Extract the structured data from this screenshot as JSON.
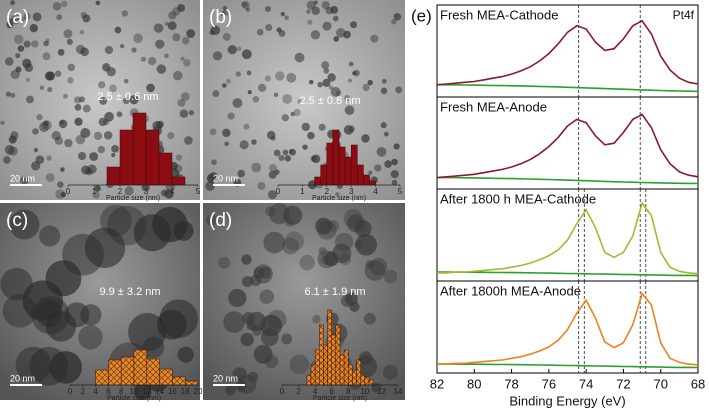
{
  "chart_data": [
    {
      "type": "histogram",
      "panel_label": "(a)",
      "scale_bar": "20 nm",
      "annotation": "2.5 ± 0.6 nm",
      "xlabel": "Particle size (nm)",
      "bins": [
        1.5,
        2,
        2.5,
        3,
        3.5,
        4,
        4.5
      ],
      "values": [
        18,
        55,
        72,
        55,
        32,
        8
      ],
      "color": "#8b0d12",
      "hatch": false,
      "xlim": [
        0,
        5
      ],
      "xticks": [
        0,
        1,
        2,
        3,
        4,
        5
      ]
    },
    {
      "type": "histogram",
      "panel_label": "(b)",
      "scale_bar": "20 nm",
      "annotation": "2.5 ± 0.6 nm",
      "xlabel": "Particle size (nm)",
      "bins": [
        1.5,
        1.75,
        2,
        2.25,
        2.5,
        2.75,
        3,
        3.25,
        3.5,
        3.75,
        4
      ],
      "values": [
        8,
        20,
        42,
        55,
        38,
        28,
        40,
        20,
        10,
        4
      ],
      "color": "#8b0d12",
      "hatch": false,
      "xlim": [
        0,
        5
      ],
      "xticks": [
        0,
        1,
        2,
        3,
        4,
        5
      ]
    },
    {
      "type": "histogram",
      "panel_label": "(c)",
      "scale_bar": "20 nm",
      "annotation": "9.9 ± 3.2 nm",
      "xlabel": "Particle size (nm)",
      "bins": [
        4,
        6,
        8,
        10,
        12,
        14,
        16,
        18,
        20
      ],
      "values": [
        15,
        25,
        28,
        35,
        26,
        16,
        8,
        4
      ],
      "color": "#e8892a",
      "hatch": true,
      "xlim": [
        0,
        20
      ],
      "xticks": [
        0,
        2,
        4,
        6,
        8,
        10,
        12,
        14,
        16,
        18,
        20
      ]
    },
    {
      "type": "histogram",
      "panel_label": "(d)",
      "scale_bar": "20 nm",
      "annotation": "6.1 ± 1.9 nm",
      "xlabel": "Particle size (nm)",
      "bins": [
        3,
        3.5,
        4,
        4.5,
        5,
        5.5,
        6,
        6.5,
        7,
        7.5,
        8,
        8.5,
        9,
        9.5,
        10,
        10.5,
        11
      ],
      "values": [
        10,
        20,
        35,
        60,
        40,
        75,
        50,
        60,
        30,
        35,
        20,
        15,
        25,
        10,
        8,
        5
      ],
      "color": "#e8892a",
      "hatch": true,
      "xlim": [
        0,
        14
      ],
      "xticks": [
        0,
        2,
        4,
        6,
        8,
        10,
        12,
        14
      ]
    },
    {
      "type": "line",
      "panel_label": "(e)",
      "note": "Pt4f",
      "title": "Fresh MEA-Cathode",
      "xlim": [
        82,
        68
      ],
      "vlines": [
        74.4,
        71.1
      ],
      "x": [
        82,
        81.5,
        81,
        80.5,
        80,
        79.5,
        79,
        78.5,
        78,
        77.5,
        77,
        76.5,
        76,
        75.5,
        75,
        74.5,
        74,
        73.5,
        73,
        72.5,
        72,
        71.5,
        71,
        70.5,
        70,
        69.5,
        69,
        68.5,
        68
      ],
      "series": [
        {
          "color": "#8b1a2a",
          "values": [
            10,
            11,
            12,
            13,
            14,
            16,
            18,
            20,
            23,
            27,
            32,
            39,
            48,
            60,
            74,
            82,
            78,
            62,
            52,
            54,
            66,
            82,
            88,
            72,
            45,
            28,
            18,
            13,
            11
          ]
        },
        {
          "color": "#2ca02c",
          "values": [
            10,
            10,
            10,
            9.8,
            9.6,
            9.4,
            9.2,
            9,
            8.8,
            8.6,
            8.3,
            8,
            7.7,
            7.4,
            7,
            6.6,
            6.2,
            5.8,
            5.4,
            5,
            4.6,
            4.2,
            3.8,
            3.4,
            3,
            2.7,
            2.4,
            2.2,
            2
          ]
        }
      ]
    },
    {
      "type": "line",
      "title": "Fresh MEA-Anode",
      "xlim": [
        82,
        68
      ],
      "vlines": [
        74.4,
        71.1
      ],
      "x": [
        82,
        81.5,
        81,
        80.5,
        80,
        79.5,
        79,
        78.5,
        78,
        77.5,
        77,
        76.5,
        76,
        75.5,
        75,
        74.5,
        74,
        73.5,
        73,
        72.5,
        72,
        71.5,
        71,
        70.5,
        70,
        69.5,
        69,
        68.5,
        68
      ],
      "series": [
        {
          "color": "#8b1a2a",
          "values": [
            9,
            10,
            11,
            12,
            13,
            15,
            17,
            19,
            22,
            26,
            31,
            38,
            47,
            58,
            72,
            80,
            76,
            60,
            49,
            51,
            64,
            80,
            86,
            70,
            43,
            26,
            16,
            12,
            10
          ]
        },
        {
          "color": "#2ca02c",
          "values": [
            9,
            9,
            9,
            8.8,
            8.6,
            8.4,
            8.2,
            8,
            7.8,
            7.6,
            7.3,
            7,
            6.7,
            6.4,
            6,
            5.6,
            5.2,
            4.8,
            4.4,
            4,
            3.7,
            3.4,
            3.1,
            2.8,
            2.5,
            2.3,
            2.1,
            2,
            2
          ]
        }
      ]
    },
    {
      "type": "line",
      "title": "After 1800 h MEA-Cathode",
      "xlim": [
        82,
        68
      ],
      "vlines": [
        74.4,
        74.1,
        71.1,
        70.8
      ],
      "x": [
        82,
        81.5,
        81,
        80.5,
        80,
        79.5,
        79,
        78.5,
        78,
        77.5,
        77,
        76.5,
        76,
        75.5,
        75,
        74.5,
        74,
        73.5,
        73,
        72.5,
        72,
        71.5,
        71,
        70.5,
        70,
        69.5,
        69,
        68.5,
        68
      ],
      "series": [
        {
          "color": "#a8b832",
          "values": [
            5,
            5,
            6,
            6,
            7,
            8,
            9,
            10,
            12,
            14,
            17,
            21,
            26,
            33,
            45,
            65,
            82,
            60,
            30,
            24,
            30,
            50,
            90,
            75,
            30,
            12,
            7,
            5,
            4
          ]
        },
        {
          "color": "#2ca02c",
          "values": [
            6,
            6,
            6,
            5.9,
            5.8,
            5.7,
            5.6,
            5.5,
            5.4,
            5.3,
            5.1,
            4.9,
            4.7,
            4.5,
            4.3,
            4.1,
            3.9,
            3.7,
            3.5,
            3.3,
            3.1,
            2.9,
            2.7,
            2.5,
            2.3,
            2.1,
            2,
            1.9,
            1.8
          ]
        }
      ]
    },
    {
      "type": "line",
      "title": "After 1800h MEA-Anode",
      "xlim": [
        82,
        68
      ],
      "vlines": [
        74.4,
        74.1,
        71.1,
        70.8
      ],
      "x": [
        82,
        81.5,
        81,
        80.5,
        80,
        79.5,
        79,
        78.5,
        78,
        77.5,
        77,
        76.5,
        76,
        75.5,
        75,
        74.5,
        74,
        73.5,
        73,
        72.5,
        72,
        71.5,
        71,
        70.5,
        70,
        69.5,
        69,
        68.5,
        68
      ],
      "series": [
        {
          "color": "#f08020",
          "values": [
            6,
            6,
            7,
            7,
            8,
            9,
            10,
            11,
            13,
            15,
            18,
            22,
            27,
            35,
            48,
            68,
            84,
            62,
            33,
            26,
            32,
            54,
            92,
            78,
            32,
            13,
            8,
            6,
            5
          ]
        },
        {
          "color": "#2ca02c",
          "values": [
            6,
            6,
            6,
            5.9,
            5.8,
            5.7,
            5.6,
            5.5,
            5.4,
            5.3,
            5.1,
            4.9,
            4.7,
            4.5,
            4.3,
            4.1,
            3.9,
            3.7,
            3.5,
            3.3,
            3.1,
            2.9,
            2.7,
            2.5,
            2.3,
            2.1,
            2,
            1.9,
            1.8
          ]
        }
      ],
      "xlabel": "Binding Energy (eV)",
      "xticks": [
        82,
        80,
        78,
        76,
        74,
        72,
        70,
        68
      ]
    }
  ]
}
